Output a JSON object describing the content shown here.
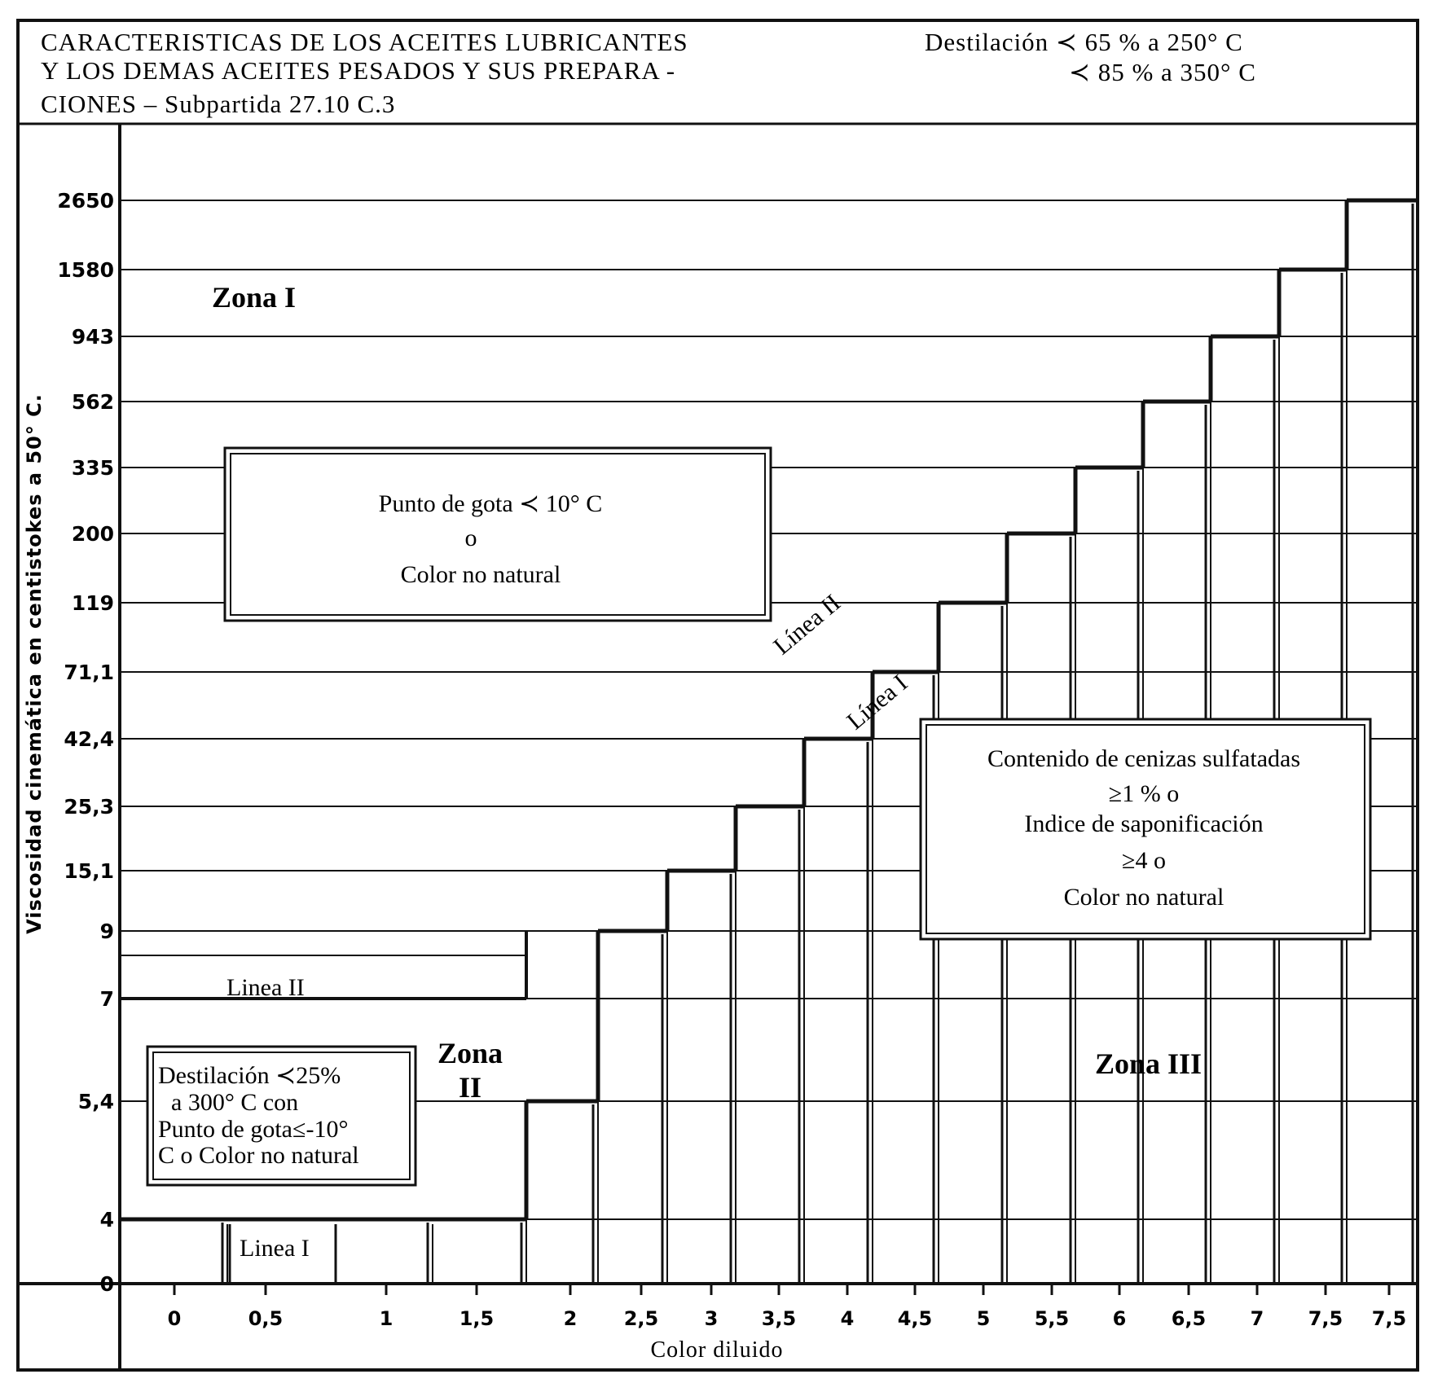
{
  "chart_data": {
    "type": "area",
    "title_lines": [
      "CARACTERISTICAS DE LOS ACEITES LUBRICANTES",
      "Y LOS DEMAS ACEITES PESADOS Y SUS PREPARA -",
      "CIONES  –  Subpartida  27.10  C.3"
    ],
    "header_right_lines": [
      "Destilación  ≺ 65 % a 250° C",
      "≺ 85 % a 350° C"
    ],
    "xlabel": "Color diluido",
    "ylabel": "Viscosidad cinemática en centistokes a 50° C.",
    "x_ticks": [
      "0",
      "0,5",
      "1",
      "1,5",
      "2",
      "2,5",
      "3",
      "3,5",
      "4",
      "4,5",
      "5",
      "5,5",
      "6",
      "6,5",
      "7",
      "7,5",
      "7,5"
    ],
    "y_ticks": [
      "0",
      "4",
      "5,4",
      "7",
      "9",
      "15,1",
      "25,3",
      "42,4",
      "71,1",
      "119",
      "200",
      "335",
      "562",
      "943",
      "1580",
      "2650"
    ],
    "x": [
      "0",
      "0,5",
      "1",
      "1,5",
      "2",
      "2,5",
      "3",
      "3,5",
      "4",
      "4,5",
      "5",
      "5,5",
      "6",
      "6,5",
      "7",
      "7,5"
    ],
    "series": [
      {
        "name": "Linea I",
        "values": [
          "4",
          "4",
          "4",
          "5,4",
          "9",
          "15,1",
          "25,3",
          "42,4",
          "71,1",
          "119",
          "200",
          "335",
          "562",
          "943",
          "1580",
          "2650"
        ]
      },
      {
        "name": "Linea II",
        "values": [
          "7",
          "7",
          "7",
          "7",
          "9",
          "15,1",
          "25,3",
          "42,4",
          "71,1",
          "119",
          "200",
          "335",
          "562",
          "943",
          "1580",
          "2650"
        ]
      }
    ],
    "grid": "horizontal",
    "zones": [
      {
        "label": "Zona I"
      },
      {
        "label": "Zona II",
        "label_lines": [
          "Zona",
          "II"
        ]
      },
      {
        "label": "Zona III"
      }
    ],
    "annotations": {
      "box_top": [
        "Punto  de  gota  ≺ 10°  C",
        "o",
        "Color  no  natural"
      ],
      "box_right": [
        "Contenido de cenizas sulfatadas",
        "≥1 %  o",
        "Indice  de  saponificación",
        "≥4  o",
        "Color  no  natural"
      ],
      "box_left": [
        "Destilación ≺25%",
        "a  300°  C   con",
        "Punto de gota≤-10°",
        "C o Color no natural"
      ],
      "line_labels": {
        "linea_i_bottom": "Linea  I",
        "linea_ii_left": "Linea  II",
        "linea_ii_diag": "Línea  II",
        "linea_i_diag": "Línea  I"
      }
    }
  }
}
